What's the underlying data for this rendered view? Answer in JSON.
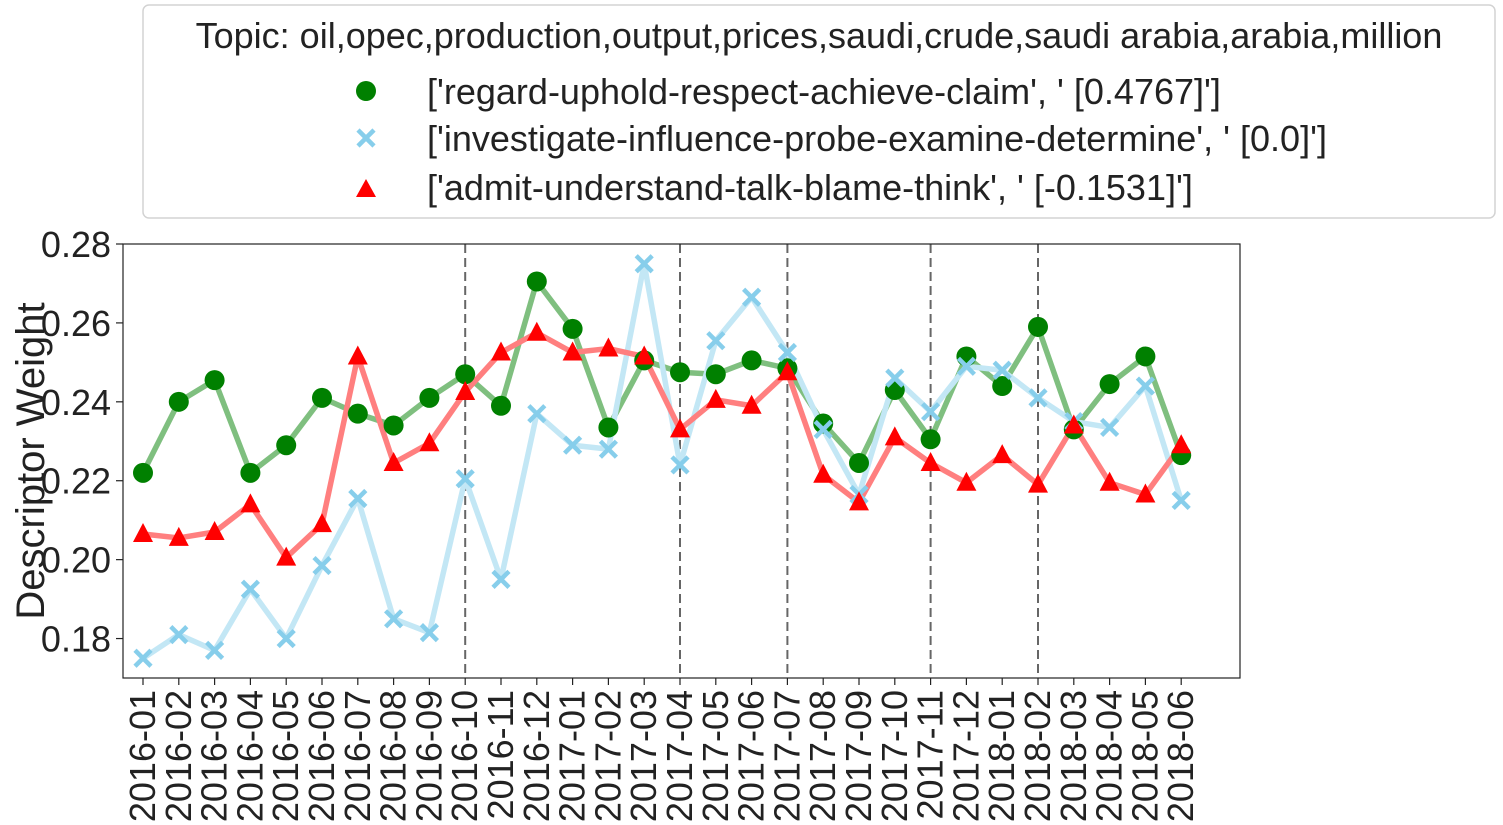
{
  "chart_data": {
    "type": "line",
    "legend_title": "Topic: oil,opec,production,output,prices,saudi,crude,saudi arabia,arabia,million",
    "legend_position": "top",
    "ylabel": "Descriptor Weight",
    "xlabel": "",
    "ylim": [
      0.17,
      0.28
    ],
    "yticks": [
      "0.18",
      "0.20",
      "0.22",
      "0.24",
      "0.26",
      "0.28"
    ],
    "ytick_values": [
      0.18,
      0.2,
      0.22,
      0.24,
      0.26,
      0.28
    ],
    "categories": [
      "2016-01",
      "2016-02",
      "2016-03",
      "2016-04",
      "2016-05",
      "2016-06",
      "2016-07",
      "2016-08",
      "2016-09",
      "2016-10",
      "2016-11",
      "2016-12",
      "2017-01",
      "2017-02",
      "2017-03",
      "2017-04",
      "2017-05",
      "2017-06",
      "2017-07",
      "2017-08",
      "2017-09",
      "2017-10",
      "2017-11",
      "2017-12",
      "2018-01",
      "2018-02",
      "2018-03",
      "2018-04",
      "2018-05",
      "2018-06"
    ],
    "vlines": [
      "2016-10",
      "2017-04",
      "2017-07",
      "2017-11",
      "2018-02"
    ],
    "series": [
      {
        "name": "['regard-uphold-respect-achieve-claim', ' [0.4767]']",
        "color": "#008000",
        "line_color": "#7fbf7f",
        "marker": "circle",
        "values": [
          0.222,
          0.24,
          0.2455,
          0.222,
          0.229,
          0.241,
          0.237,
          0.234,
          0.241,
          0.247,
          0.239,
          0.2705,
          0.2585,
          0.2335,
          0.2505,
          0.2475,
          0.247,
          0.2505,
          0.2485,
          0.2345,
          0.2245,
          0.243,
          0.2305,
          0.2515,
          0.244,
          0.259,
          0.233,
          0.2445,
          0.2515,
          0.2265
        ]
      },
      {
        "name": "['investigate-influence-probe-examine-determine', ' [0.0]']",
        "color": "#87ceeb",
        "line_color": "#c3e7f5",
        "marker": "x",
        "values": [
          0.175,
          0.181,
          0.177,
          0.1925,
          0.18,
          0.1985,
          0.2155,
          0.185,
          0.1815,
          0.2205,
          0.195,
          0.237,
          0.229,
          0.228,
          0.275,
          0.224,
          0.2555,
          0.2665,
          0.2525,
          0.233,
          0.2165,
          0.246,
          0.2375,
          0.249,
          0.248,
          0.241,
          0.235,
          0.2335,
          0.244,
          0.215
        ]
      },
      {
        "name": "['admit-understand-talk-blame-think', ' [-0.1531]']",
        "color": "#ff0000",
        "line_color": "#ff7f7f",
        "marker": "triangle",
        "values": [
          0.2065,
          0.2055,
          0.207,
          0.214,
          0.2005,
          0.209,
          0.2515,
          0.2245,
          0.2295,
          0.2425,
          0.2525,
          0.2575,
          0.2525,
          0.2535,
          0.2515,
          0.233,
          0.2405,
          0.239,
          0.2475,
          0.2215,
          0.2145,
          0.231,
          0.2245,
          0.2195,
          0.2265,
          0.219,
          0.234,
          0.2195,
          0.2165,
          0.229
        ]
      }
    ]
  }
}
